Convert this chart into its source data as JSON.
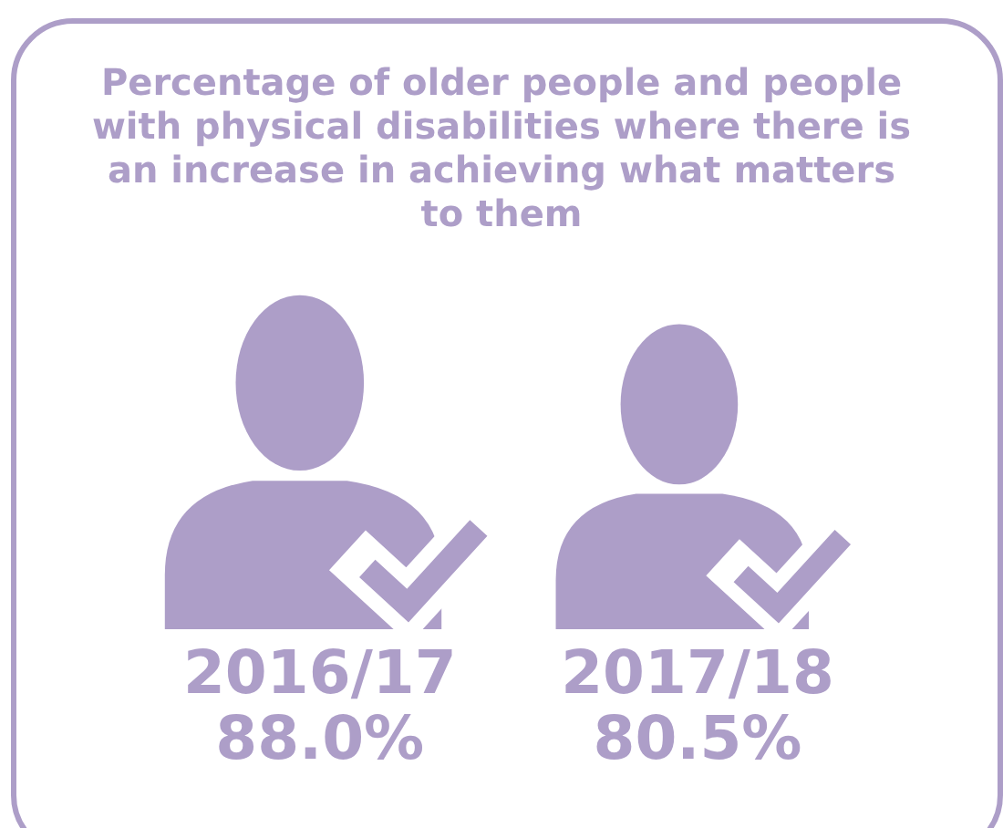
{
  "chart_data": {
    "type": "other",
    "title": "Percentage of older people and people with physical disabilities where there is an increase in achieving what matters to them",
    "categories": [
      "2016/17",
      "2017/18"
    ],
    "values": [
      88.0,
      80.5
    ],
    "value_labels": [
      "88.0%",
      "80.5%"
    ],
    "color": "#ad9ec8"
  }
}
